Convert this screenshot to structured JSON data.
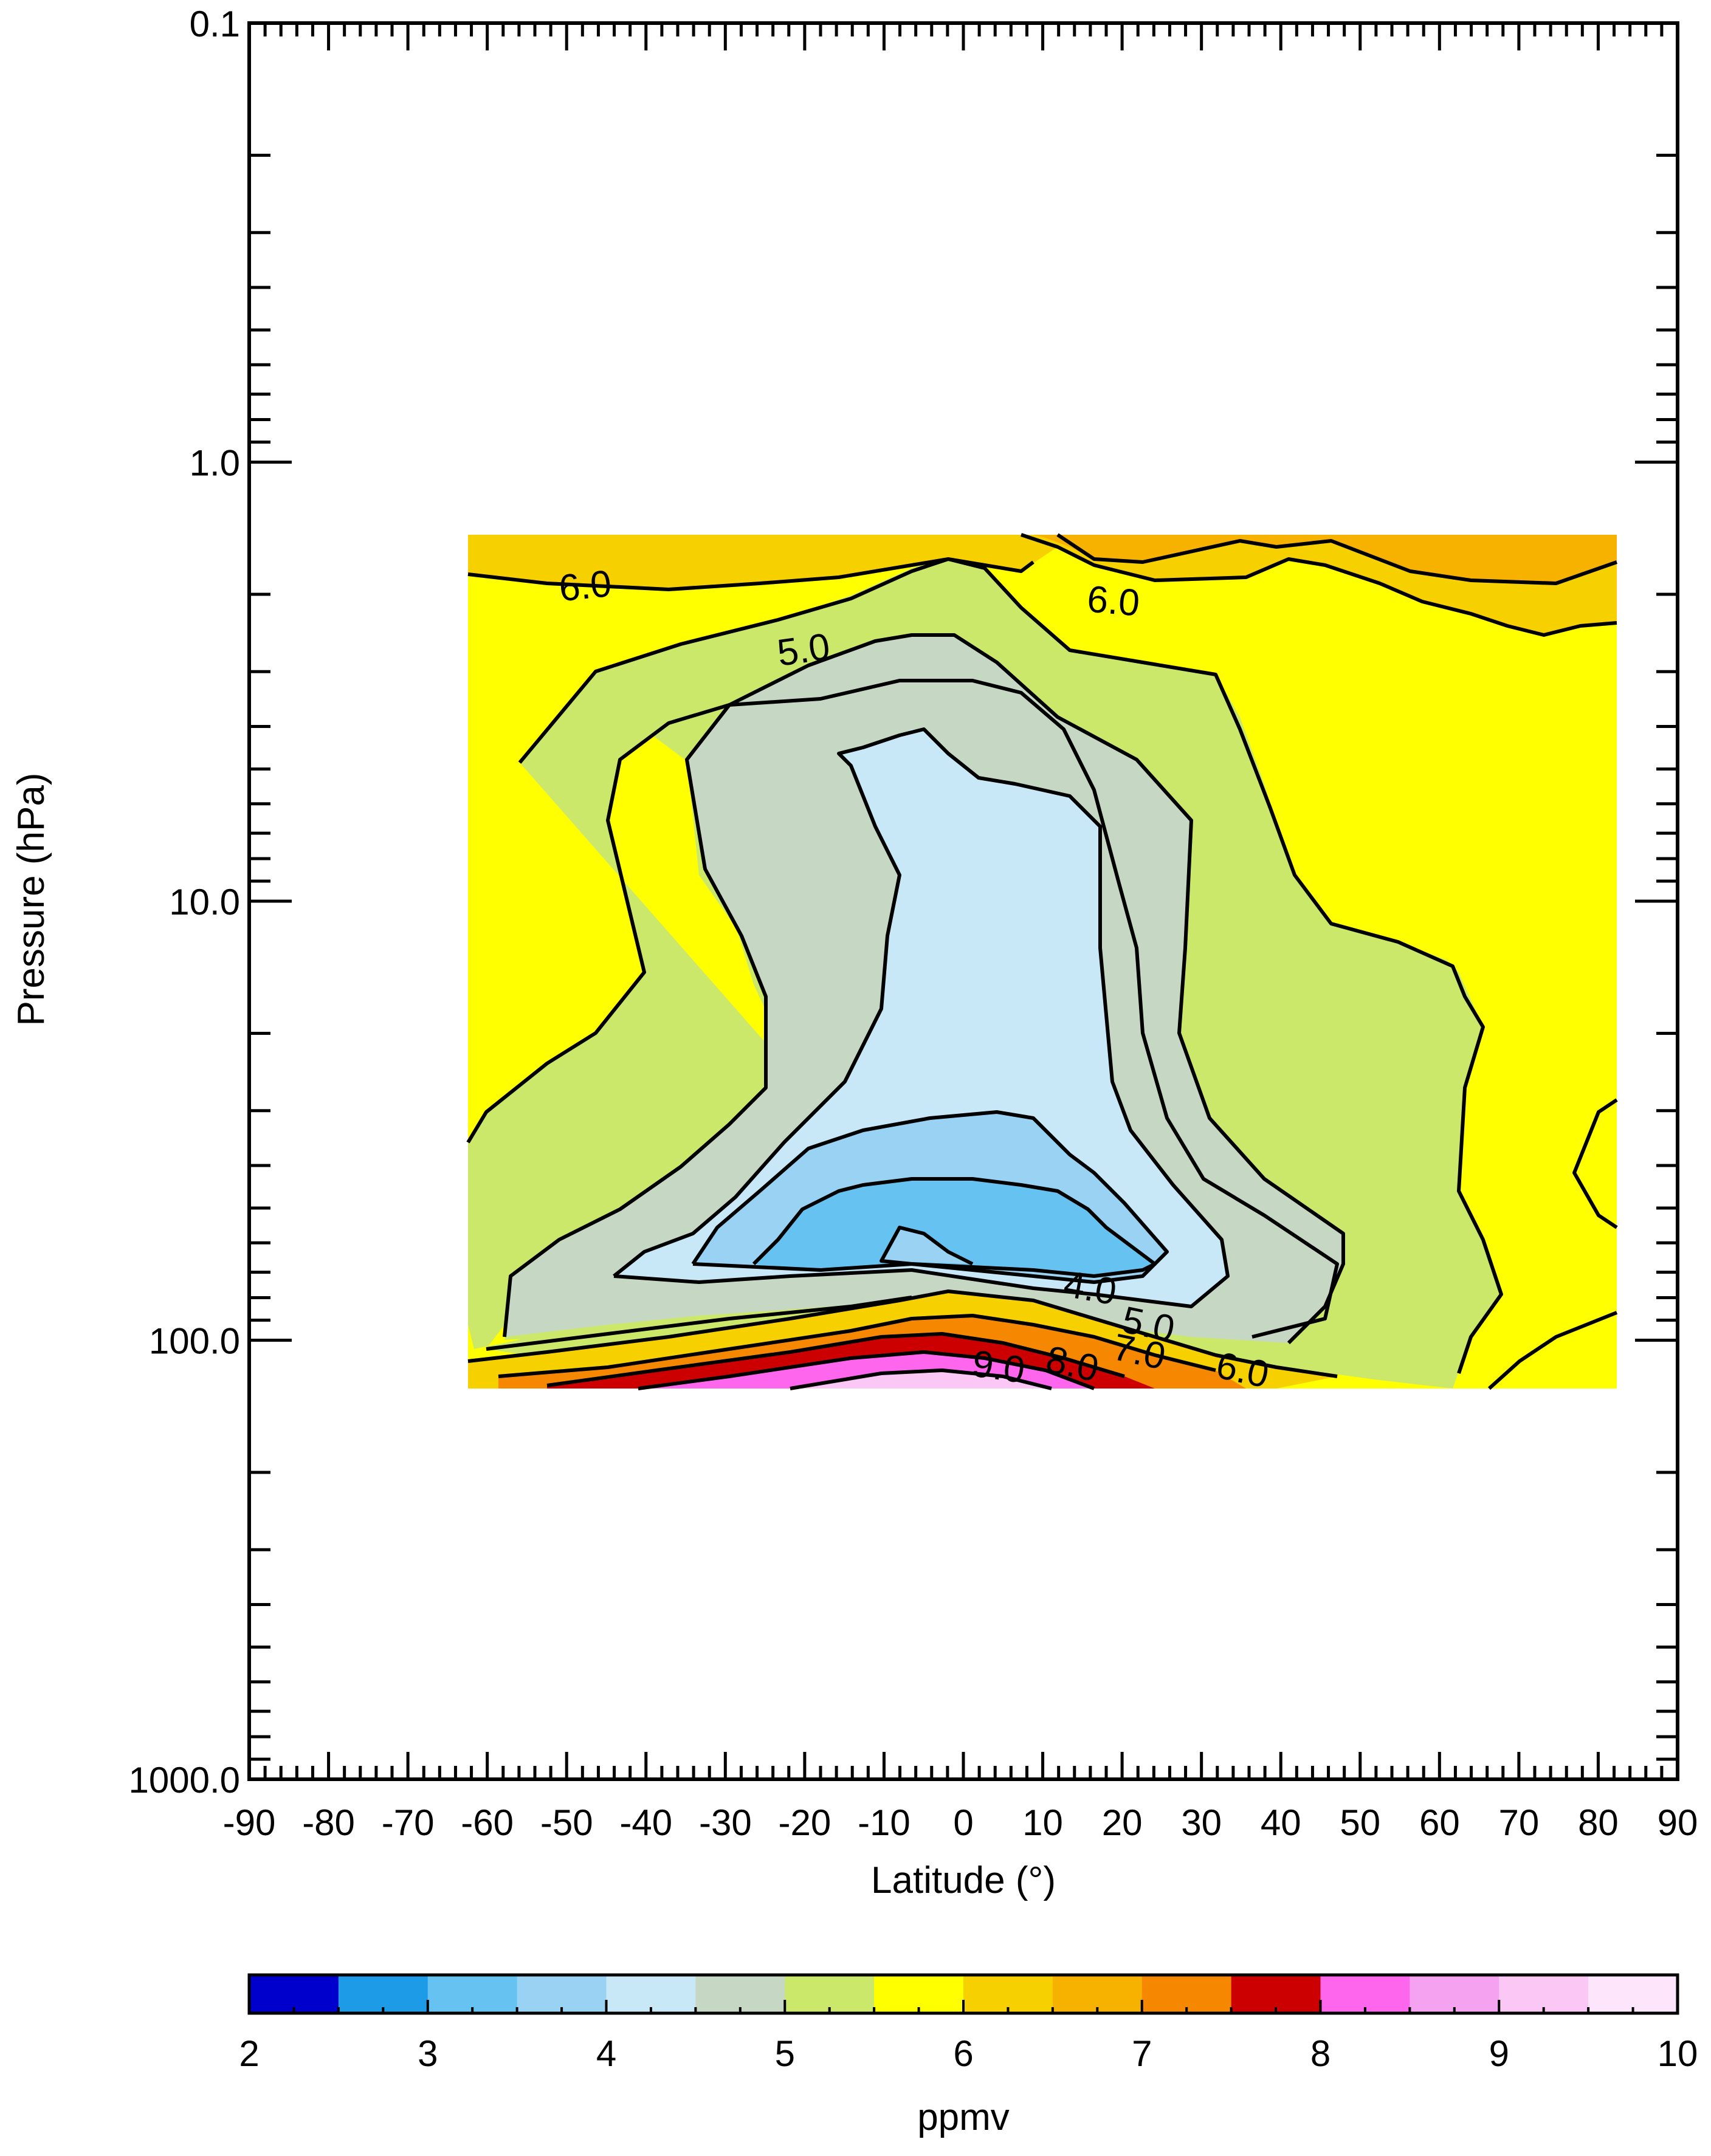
{
  "chart_data": {
    "type": "contour",
    "xlabel": "Latitude (°)",
    "ylabel": "Pressure (hPa)",
    "xlim": [
      -90,
      90
    ],
    "ylim": [
      1000.0,
      0.1
    ],
    "y_scale": "log",
    "x_ticks": [
      "-90",
      "-80",
      "-70",
      "-60",
      "-50",
      "-40",
      "-30",
      "-20",
      "-10",
      "0",
      "10",
      "20",
      "30",
      "40",
      "50",
      "60",
      "70",
      "80",
      "90"
    ],
    "y_ticks": [
      "0.1",
      "1.0",
      "10.0",
      "100.0",
      "1000.0"
    ],
    "data_extent": {
      "lat": [
        -62,
        83
      ],
      "pressure_hpa": [
        130,
        1.2
      ]
    },
    "contour_labels": [
      "6.0",
      "6.0",
      "5.0",
      "4.0",
      "5.0",
      "6.0",
      "7.0",
      "8.0",
      "9.0"
    ],
    "colorbar": {
      "label": "ppmv",
      "ticks": [
        "2",
        "3",
        "4",
        "5",
        "6",
        "7",
        "8",
        "9",
        "10"
      ],
      "range": [
        2,
        10
      ],
      "step": 0.5,
      "colors": [
        "#0000cc",
        "#1e9be6",
        "#66c2f0",
        "#99d2f2",
        "#c8e8f8",
        "#c6d7c4",
        "#cbe86a",
        "#ffff00",
        "#f7d000",
        "#f7b200",
        "#f58800",
        "#cc0000",
        "#ff66ee",
        "#f5a3f0",
        "#fbc8f5",
        "#fde6fb"
      ]
    },
    "grid": false,
    "legend": "colorbar-bottom"
  }
}
